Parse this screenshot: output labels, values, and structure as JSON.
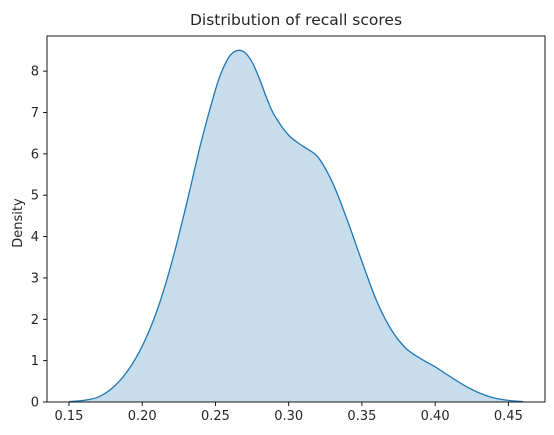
{
  "chart_data": {
    "type": "area",
    "title": "Distribution of recall scores",
    "xlabel": "",
    "ylabel": "Density",
    "xlim": [
      0.135,
      0.475
    ],
    "ylim": [
      0,
      8.85
    ],
    "xticks": [
      0.15,
      0.2,
      0.25,
      0.3,
      0.35,
      0.4,
      0.45
    ],
    "xtick_labels": [
      "0.15",
      "0.20",
      "0.25",
      "0.30",
      "0.35",
      "0.40",
      "0.45"
    ],
    "yticks": [
      0,
      1,
      2,
      3,
      4,
      5,
      6,
      7,
      8
    ],
    "ytick_labels": [
      "0",
      "1",
      "2",
      "3",
      "4",
      "5",
      "6",
      "7",
      "8"
    ],
    "grid": false,
    "colors": {
      "line": "#1f77b4",
      "fill": "#1f77b4",
      "fill_opacity": 0.25
    },
    "series": [
      {
        "x": [
          0.15,
          0.16,
          0.17,
          0.18,
          0.19,
          0.2,
          0.21,
          0.22,
          0.23,
          0.24,
          0.25,
          0.255,
          0.26,
          0.265,
          0.27,
          0.275,
          0.28,
          0.285,
          0.29,
          0.3,
          0.31,
          0.32,
          0.33,
          0.34,
          0.35,
          0.36,
          0.37,
          0.38,
          0.39,
          0.4,
          0.41,
          0.42,
          0.43,
          0.44,
          0.45,
          0.46
        ],
        "y": [
          0.01,
          0.04,
          0.12,
          0.35,
          0.75,
          1.35,
          2.2,
          3.35,
          4.75,
          6.25,
          7.55,
          8.05,
          8.38,
          8.5,
          8.45,
          8.22,
          7.82,
          7.35,
          6.95,
          6.45,
          6.18,
          5.92,
          5.3,
          4.4,
          3.4,
          2.45,
          1.75,
          1.3,
          1.05,
          0.85,
          0.62,
          0.4,
          0.22,
          0.1,
          0.04,
          0.01
        ]
      }
    ]
  }
}
